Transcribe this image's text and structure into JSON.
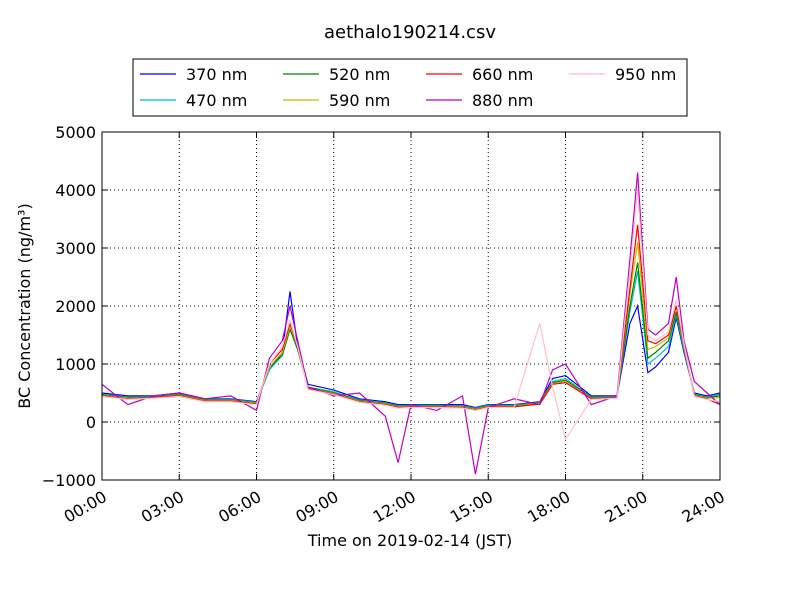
{
  "chart_data": {
    "type": "line",
    "title": "aethalo190214.csv",
    "xlabel": "Time on 2019-02-14 (JST)",
    "ylabel": "BC Concentration (ng/m³)",
    "x": [
      0,
      1,
      2,
      3,
      4,
      5,
      6,
      6.5,
      7,
      7.3,
      7.6,
      8,
      9,
      10,
      11,
      11.5,
      12,
      13,
      14,
      14.5,
      15,
      16,
      17,
      17.5,
      18,
      19,
      20,
      20.5,
      20.8,
      21.2,
      21.5,
      22,
      22.3,
      22.6,
      23,
      23.5,
      24
    ],
    "series": [
      {
        "name": "370 nm",
        "color": "#0000ff",
        "values": [
          500,
          450,
          450,
          500,
          400,
          400,
          350,
          900,
          1200,
          2250,
          1300,
          650,
          550,
          400,
          350,
          300,
          300,
          300,
          300,
          250,
          300,
          300,
          350,
          750,
          800,
          450,
          450,
          1700,
          2000,
          850,
          950,
          1200,
          1800,
          1200,
          500,
          450,
          500
        ]
      },
      {
        "name": "470 nm",
        "color": "#00bfbf",
        "values": [
          480,
          430,
          440,
          480,
          390,
          390,
          340,
          900,
          1150,
          1600,
          1250,
          600,
          520,
          380,
          330,
          280,
          290,
          290,
          280,
          240,
          290,
          290,
          340,
          700,
          750,
          430,
          440,
          1900,
          2600,
          1000,
          1100,
          1300,
          1850,
          1250,
          480,
          430,
          480
        ]
      },
      {
        "name": "520 nm",
        "color": "#008000",
        "values": [
          470,
          420,
          430,
          470,
          380,
          380,
          330,
          950,
          1150,
          1600,
          1250,
          600,
          500,
          370,
          320,
          270,
          280,
          280,
          270,
          230,
          280,
          280,
          330,
          680,
          720,
          420,
          430,
          2000,
          2750,
          1100,
          1200,
          1400,
          1900,
          1300,
          470,
          420,
          450
        ]
      },
      {
        "name": "590 nm",
        "color": "#bfbf00",
        "values": [
          460,
          410,
          420,
          460,
          370,
          370,
          320,
          950,
          1200,
          1650,
          1300,
          580,
          490,
          360,
          310,
          260,
          270,
          270,
          260,
          220,
          270,
          270,
          320,
          660,
          700,
          410,
          420,
          2200,
          3100,
          1250,
          1300,
          1450,
          2000,
          1300,
          460,
          410,
          420
        ]
      },
      {
        "name": "660 nm",
        "color": "#ff0000",
        "values": [
          450,
          400,
          420,
          450,
          360,
          360,
          310,
          1000,
          1250,
          1700,
          1300,
          570,
          480,
          350,
          300,
          250,
          260,
          260,
          250,
          210,
          260,
          260,
          310,
          650,
          680,
          400,
          420,
          2300,
          3400,
          1400,
          1350,
          1500,
          2000,
          1350,
          450,
          400,
          300
        ]
      },
      {
        "name": "880 nm",
        "color": "#bf00bf",
        "values": [
          650,
          300,
          450,
          500,
          400,
          450,
          200,
          1100,
          1400,
          2000,
          1400,
          600,
          450,
          500,
          100,
          -700,
          300,
          200,
          450,
          -900,
          250,
          400,
          300,
          900,
          1000,
          300,
          450,
          2800,
          4300,
          1600,
          1500,
          1700,
          2500,
          1400,
          700,
          500,
          300
        ]
      },
      {
        "name": "950 nm",
        "color": "#ffc0cb",
        "values": [
          440,
          390,
          410,
          440,
          350,
          350,
          300,
          1000,
          1300,
          1750,
          1300,
          560,
          470,
          340,
          290,
          240,
          250,
          250,
          240,
          200,
          250,
          250,
          1700,
          600,
          -300,
          390,
          410,
          2600,
          4000,
          1500,
          1400,
          1550,
          2100,
          1350,
          440,
          390,
          350
        ]
      }
    ],
    "xlim": [
      0,
      24
    ],
    "xticks": [
      {
        "value": 0,
        "label": "00:00"
      },
      {
        "value": 3,
        "label": "03:00"
      },
      {
        "value": 6,
        "label": "06:00"
      },
      {
        "value": 9,
        "label": "09:00"
      },
      {
        "value": 12,
        "label": "12:00"
      },
      {
        "value": 15,
        "label": "15:00"
      },
      {
        "value": 18,
        "label": "18:00"
      },
      {
        "value": 21,
        "label": "21:00"
      },
      {
        "value": 24,
        "label": "24:00"
      }
    ],
    "ylim": [
      -1000,
      5000
    ],
    "yticks": [
      {
        "value": -1000,
        "label": "−1000"
      },
      0,
      1000,
      2000,
      3000,
      4000,
      5000
    ],
    "grid": true,
    "legend": "top"
  }
}
